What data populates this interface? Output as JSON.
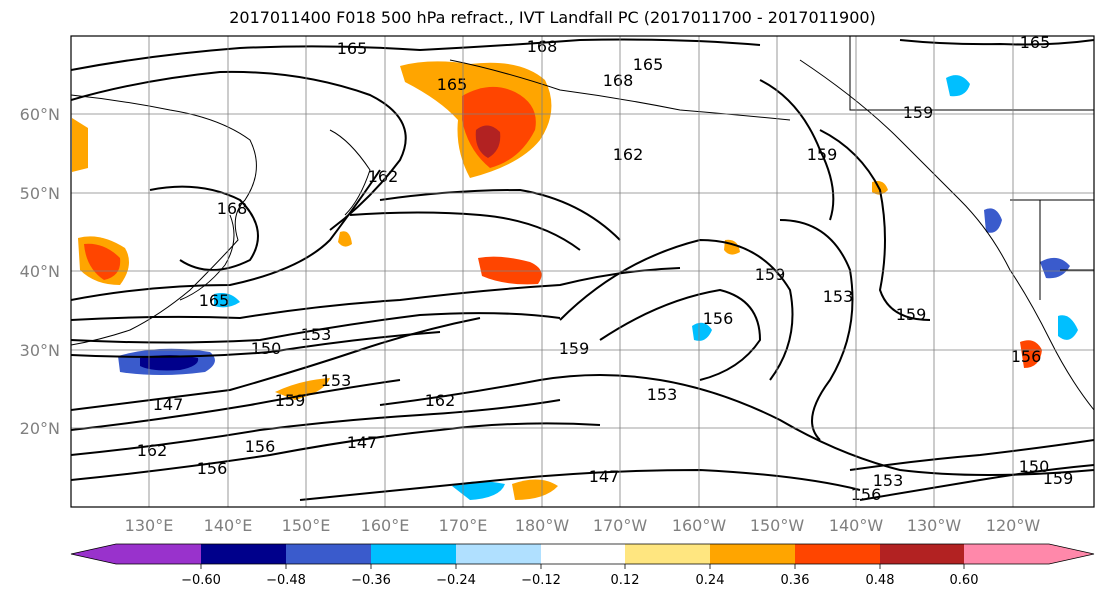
{
  "title": "2017011400 F018 500 hPa refract., IVT Landfall PC (2017011700 - 2017011900)",
  "lat_labels": [
    "60°N",
    "50°N",
    "40°N",
    "30°N",
    "20°N"
  ],
  "lon_labels": [
    "130°E",
    "140°E",
    "150°E",
    "160°E",
    "170°E",
    "180°W",
    "170°W",
    "160°W",
    "150°W",
    "140°W",
    "130°W",
    "120°W"
  ],
  "colorbar": {
    "ticks": [
      "−0.60",
      "−0.48",
      "−0.36",
      "−0.24",
      "−0.12",
      "0.12",
      "0.24",
      "0.36",
      "0.48",
      "0.60"
    ],
    "colors": [
      "#9932cc",
      "#00008b",
      "#3a5bcc",
      "#00bfff",
      "#b0e0ff",
      "#ffffff",
      "#ffe680",
      "#ffa500",
      "#ff4500",
      "#b22222",
      "#ff88aa"
    ]
  },
  "contour_labels": [
    "165",
    "168",
    "165",
    "168",
    "165",
    "162",
    "159",
    "162",
    "168",
    "159",
    "153",
    "153",
    "150",
    "159",
    "156",
    "165",
    "153",
    "159",
    "147",
    "159",
    "162",
    "153",
    "156",
    "162",
    "156",
    "147",
    "147",
    "156",
    "153",
    "150",
    "159",
    "156",
    "159",
    "165"
  ],
  "colors": {
    "contour": "#000000",
    "grid": "#808080",
    "frame": "#000000"
  }
}
